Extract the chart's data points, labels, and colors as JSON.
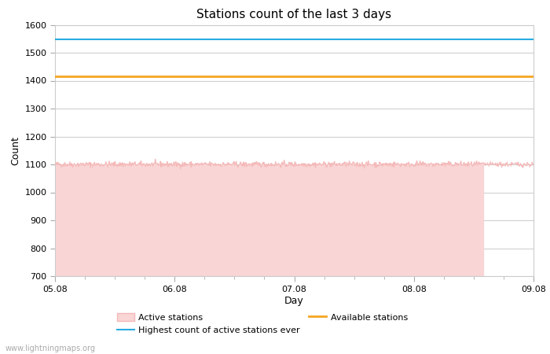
{
  "title": "Stations count of the last 3 days",
  "xlabel": "Day",
  "ylabel": "Count",
  "ylim": [
    700,
    1600
  ],
  "yticks": [
    700,
    800,
    900,
    1000,
    1100,
    1200,
    1300,
    1400,
    1500,
    1600
  ],
  "x_start": 0.0,
  "x_end": 4.0,
  "xtick_positions": [
    0.0,
    1.0,
    2.0,
    3.0,
    4.0
  ],
  "xtick_labels": [
    "05.08",
    "06.08",
    "07.08",
    "08.08",
    "09.08"
  ],
  "active_stations_base": 1100,
  "active_stations_noise": 5,
  "active_stations_fill_end": 3.58,
  "highest_ever_value": 1547,
  "available_stations_value": 1415,
  "active_line_color": "#f4b8b8",
  "active_fill_color": "#f9d5d5",
  "highest_ever_color": "#29abe2",
  "available_color": "#f5a623",
  "background_color": "#ffffff",
  "grid_color": "#d0d0d0",
  "title_fontsize": 11,
  "axis_fontsize": 9,
  "tick_fontsize": 8,
  "watermark": "www.lightningmaps.org"
}
